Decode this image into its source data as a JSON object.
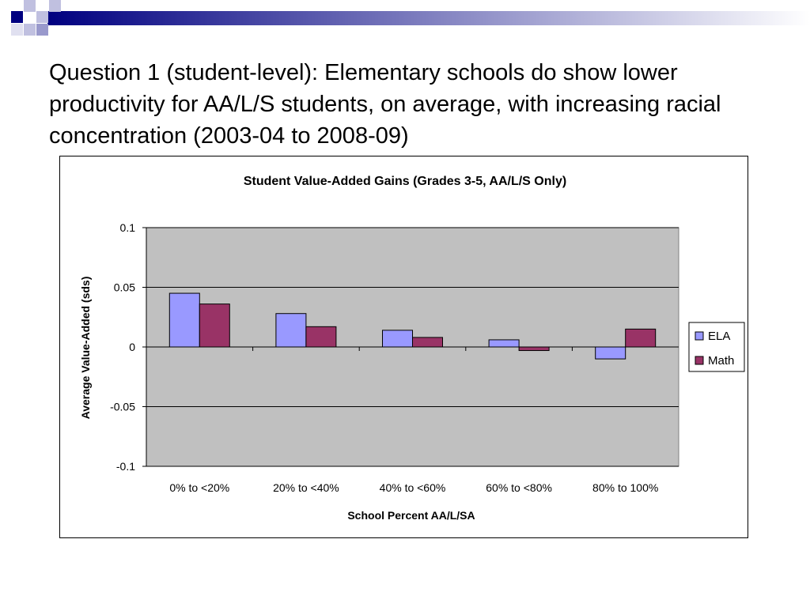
{
  "slide": {
    "title": "Question 1 (student-level):  Elementary schools do show lower productivity for AA/L/S students, on average, with increasing racial concentration (2003-04 to 2008-09)"
  },
  "chart_data": {
    "type": "bar",
    "title": "Student Value-Added Gains (Grades 3-5, AA/L/S Only)",
    "xlabel": "School Percent AA/L/SA",
    "ylabel": "Average Value-Added (sds)",
    "categories": [
      "0% to <20%",
      "20% to <40%",
      "40% to <60%",
      "60% to <80%",
      "80% to 100%"
    ],
    "series": [
      {
        "name": "ELA",
        "color": "#9999ff",
        "values": [
          0.045,
          0.028,
          0.014,
          0.006,
          -0.01
        ]
      },
      {
        "name": "Math",
        "color": "#993366",
        "values": [
          0.036,
          0.017,
          0.008,
          -0.003,
          0.015
        ]
      }
    ],
    "ylim": [
      -0.1,
      0.1
    ],
    "yticks": [
      0.1,
      0.05,
      0,
      -0.05,
      -0.1
    ],
    "ytick_labels": [
      "0.1",
      "0.05",
      "0",
      "-0.05",
      "-0.1"
    ],
    "plot_background": "#c0c0c0",
    "grid": true,
    "legend_position": "right"
  }
}
